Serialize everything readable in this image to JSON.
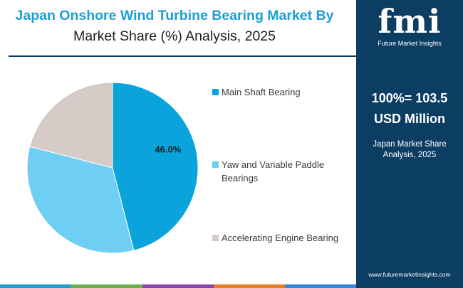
{
  "header": {
    "title_line1": "Japan Onshore Wind Turbine Bearing Market By",
    "title_line2": "Market Share (%) Analysis, 2025"
  },
  "panel": {
    "logo_text": "fmi",
    "logo_subtext": "Future Market Insights",
    "value_line1": "100%= 103.5",
    "value_line2": "USD Million",
    "caption_line1": "Japan Market Share",
    "caption_line2": "Analysis, 2025",
    "url": "www.futuremarketinsights.com"
  },
  "colors": {
    "title": "#1a9fd6",
    "panel": "#0c3d63",
    "bottom_bar": [
      "#1a9fd6",
      "#6ab04c",
      "#8e44ad",
      "#e67e22",
      "#2e86de"
    ]
  },
  "chart_data": {
    "type": "pie",
    "title": "Japan Onshore Wind Turbine Bearing Market By Market Share (%) Analysis, 2025",
    "series": [
      {
        "name": "Main Shaft Bearing",
        "value": 46.0,
        "label": "46.0%",
        "color": "#0aa3dc"
      },
      {
        "name": "Yaw and Variable Paddle Bearings",
        "value": 33.0,
        "label": "",
        "color": "#6fcef3"
      },
      {
        "name": "Accelerating Engine Bearing",
        "value": 21.0,
        "label": "",
        "color": "#d6cbc6"
      }
    ],
    "legend": {
      "position": "right",
      "items": [
        {
          "line1": "Main Shaft Bearing",
          "line2": ""
        },
        {
          "line1": "Yaw and Variable Paddle",
          "line2": "Bearings"
        },
        {
          "line1": "Accelerating Engine Bearing",
          "line2": ""
        }
      ]
    }
  }
}
